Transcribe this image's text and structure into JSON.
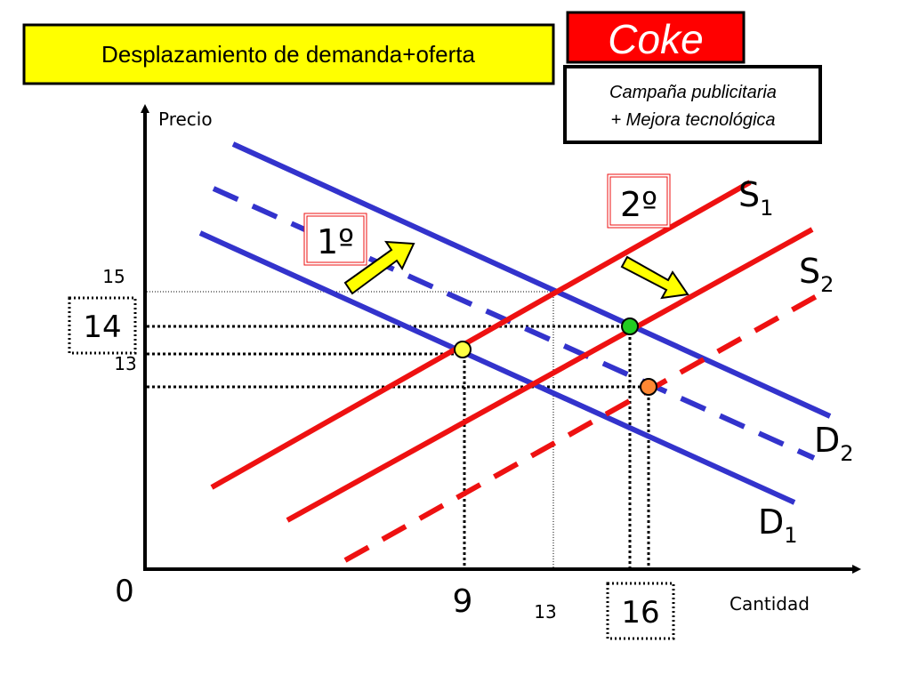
{
  "title": "Desplazamiento de demanda+oferta",
  "brand": "Coke",
  "note": [
    "Campaña publicitaria",
    "+ Mejora tecnológica"
  ],
  "axes": {
    "y_label": "Precio",
    "x_label": "Cantidad",
    "origin": 0
  },
  "price_labels": [
    15,
    14,
    13
  ],
  "quantity_labels": [
    9,
    13,
    16
  ],
  "steps": [
    "1º",
    "2º"
  ],
  "curves": [
    {
      "letter": "S",
      "sub": "1"
    },
    {
      "letter": "S",
      "sub": "2"
    },
    {
      "letter": "D",
      "sub": "2"
    },
    {
      "letter": "D",
      "sub": "1"
    }
  ]
}
